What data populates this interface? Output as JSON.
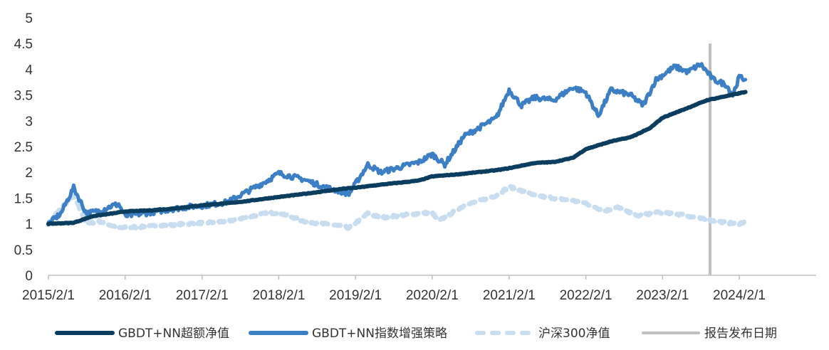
{
  "chart_data": {
    "type": "line",
    "ylim": [
      0,
      5
    ],
    "y_ticks": [
      "0",
      "0.5",
      "1",
      "1.5",
      "2",
      "2.5",
      "3",
      "3.5",
      "4",
      "4.5",
      "5"
    ],
    "x_ticks": [
      "2015/2/1",
      "2016/2/1",
      "2017/2/1",
      "2018/2/1",
      "2019/2/1",
      "2020/2/1",
      "2021/2/1",
      "2022/2/1",
      "2023/2/1",
      "2024/2/1"
    ],
    "xlim": [
      "2015-02-01",
      "2025-02-01"
    ],
    "grid": false,
    "legend_position": "bottom",
    "series": [
      {
        "name": "GBDT+NN超额净值",
        "color": "#0b3d5e",
        "style": "solid",
        "points": [
          [
            "2015-02-01",
            1.0
          ],
          [
            "2015-06-01",
            1.02
          ],
          [
            "2015-09-01",
            1.15
          ],
          [
            "2015-12-01",
            1.2
          ],
          [
            "2016-02-01",
            1.24
          ],
          [
            "2016-06-01",
            1.26
          ],
          [
            "2016-09-01",
            1.29
          ],
          [
            "2016-12-01",
            1.33
          ],
          [
            "2017-02-01",
            1.36
          ],
          [
            "2017-06-01",
            1.4
          ],
          [
            "2017-09-01",
            1.44
          ],
          [
            "2017-12-01",
            1.49
          ],
          [
            "2018-02-01",
            1.52
          ],
          [
            "2018-06-01",
            1.58
          ],
          [
            "2018-09-01",
            1.63
          ],
          [
            "2018-12-01",
            1.68
          ],
          [
            "2019-02-01",
            1.7
          ],
          [
            "2019-06-01",
            1.76
          ],
          [
            "2019-09-01",
            1.8
          ],
          [
            "2019-12-01",
            1.84
          ],
          [
            "2020-02-01",
            1.92
          ],
          [
            "2020-06-01",
            1.96
          ],
          [
            "2020-09-01",
            2.0
          ],
          [
            "2020-12-01",
            2.04
          ],
          [
            "2021-02-01",
            2.08
          ],
          [
            "2021-06-01",
            2.18
          ],
          [
            "2021-09-01",
            2.2
          ],
          [
            "2021-12-01",
            2.28
          ],
          [
            "2022-02-01",
            2.45
          ],
          [
            "2022-06-01",
            2.6
          ],
          [
            "2022-09-01",
            2.68
          ],
          [
            "2022-12-01",
            2.85
          ],
          [
            "2023-02-01",
            3.06
          ],
          [
            "2023-06-01",
            3.25
          ],
          [
            "2023-09-01",
            3.4
          ],
          [
            "2023-12-01",
            3.48
          ],
          [
            "2024-03-01",
            3.56
          ]
        ]
      },
      {
        "name": "GBDT+NN指数增强策略",
        "color": "#3d7fc4",
        "style": "solid",
        "points": [
          [
            "2015-02-01",
            1.0
          ],
          [
            "2015-04-01",
            1.2
          ],
          [
            "2015-06-01",
            1.7
          ],
          [
            "2015-08-01",
            1.2
          ],
          [
            "2015-10-01",
            1.25
          ],
          [
            "2015-12-01",
            1.35
          ],
          [
            "2016-01-01",
            1.38
          ],
          [
            "2016-02-01",
            1.15
          ],
          [
            "2016-06-01",
            1.22
          ],
          [
            "2016-09-01",
            1.28
          ],
          [
            "2016-12-01",
            1.33
          ],
          [
            "2017-02-01",
            1.35
          ],
          [
            "2017-06-01",
            1.42
          ],
          [
            "2017-09-01",
            1.62
          ],
          [
            "2017-12-01",
            1.82
          ],
          [
            "2018-02-01",
            1.98
          ],
          [
            "2018-06-01",
            1.86
          ],
          [
            "2018-09-01",
            1.72
          ],
          [
            "2018-12-01",
            1.62
          ],
          [
            "2019-01-01",
            1.58
          ],
          [
            "2019-04-01",
            2.15
          ],
          [
            "2019-06-01",
            2.0
          ],
          [
            "2019-09-01",
            2.1
          ],
          [
            "2019-12-01",
            2.2
          ],
          [
            "2020-02-01",
            2.35
          ],
          [
            "2020-04-01",
            2.15
          ],
          [
            "2020-07-01",
            2.7
          ],
          [
            "2020-12-01",
            3.05
          ],
          [
            "2021-02-01",
            3.6
          ],
          [
            "2021-04-01",
            3.3
          ],
          [
            "2021-06-01",
            3.45
          ],
          [
            "2021-09-01",
            3.4
          ],
          [
            "2021-12-01",
            3.65
          ],
          [
            "2022-02-01",
            3.55
          ],
          [
            "2022-04-01",
            3.1
          ],
          [
            "2022-06-01",
            3.6
          ],
          [
            "2022-09-01",
            3.5
          ],
          [
            "2022-11-01",
            3.3
          ],
          [
            "2023-01-01",
            3.8
          ],
          [
            "2023-04-01",
            4.05
          ],
          [
            "2023-06-01",
            3.95
          ],
          [
            "2023-08-01",
            4.1
          ],
          [
            "2023-10-01",
            3.8
          ],
          [
            "2023-12-01",
            3.7
          ],
          [
            "2024-01-01",
            3.5
          ],
          [
            "2024-02-01",
            3.85
          ],
          [
            "2024-03-01",
            3.8
          ]
        ]
      },
      {
        "name": "沪深300净值",
        "color": "#c9ddf0",
        "style": "dotted",
        "points": [
          [
            "2015-02-01",
            1.0
          ],
          [
            "2015-04-01",
            1.3
          ],
          [
            "2015-06-01",
            1.55
          ],
          [
            "2015-08-01",
            1.0
          ],
          [
            "2015-10-01",
            1.05
          ],
          [
            "2016-01-01",
            0.92
          ],
          [
            "2016-06-01",
            0.95
          ],
          [
            "2016-12-01",
            1.0
          ],
          [
            "2017-06-01",
            1.05
          ],
          [
            "2017-12-01",
            1.2
          ],
          [
            "2018-02-01",
            1.22
          ],
          [
            "2018-06-01",
            1.05
          ],
          [
            "2018-12-01",
            0.95
          ],
          [
            "2019-01-01",
            0.92
          ],
          [
            "2019-04-01",
            1.2
          ],
          [
            "2019-06-01",
            1.12
          ],
          [
            "2019-12-01",
            1.2
          ],
          [
            "2020-02-01",
            1.22
          ],
          [
            "2020-03-01",
            1.05
          ],
          [
            "2020-07-01",
            1.35
          ],
          [
            "2020-12-01",
            1.55
          ],
          [
            "2021-02-01",
            1.72
          ],
          [
            "2021-06-01",
            1.55
          ],
          [
            "2021-12-01",
            1.45
          ],
          [
            "2022-02-01",
            1.4
          ],
          [
            "2022-05-01",
            1.25
          ],
          [
            "2022-07-01",
            1.32
          ],
          [
            "2022-10-01",
            1.15
          ],
          [
            "2023-01-01",
            1.22
          ],
          [
            "2023-05-01",
            1.18
          ],
          [
            "2023-08-01",
            1.1
          ],
          [
            "2023-12-01",
            1.02
          ],
          [
            "2024-02-01",
            1.0
          ],
          [
            "2024-03-01",
            1.05
          ]
        ]
      }
    ],
    "report_date": {
      "name": "报告发布日期",
      "color": "#c0c0c0",
      "date": "2023-09-15",
      "y_top": 4.5
    }
  }
}
